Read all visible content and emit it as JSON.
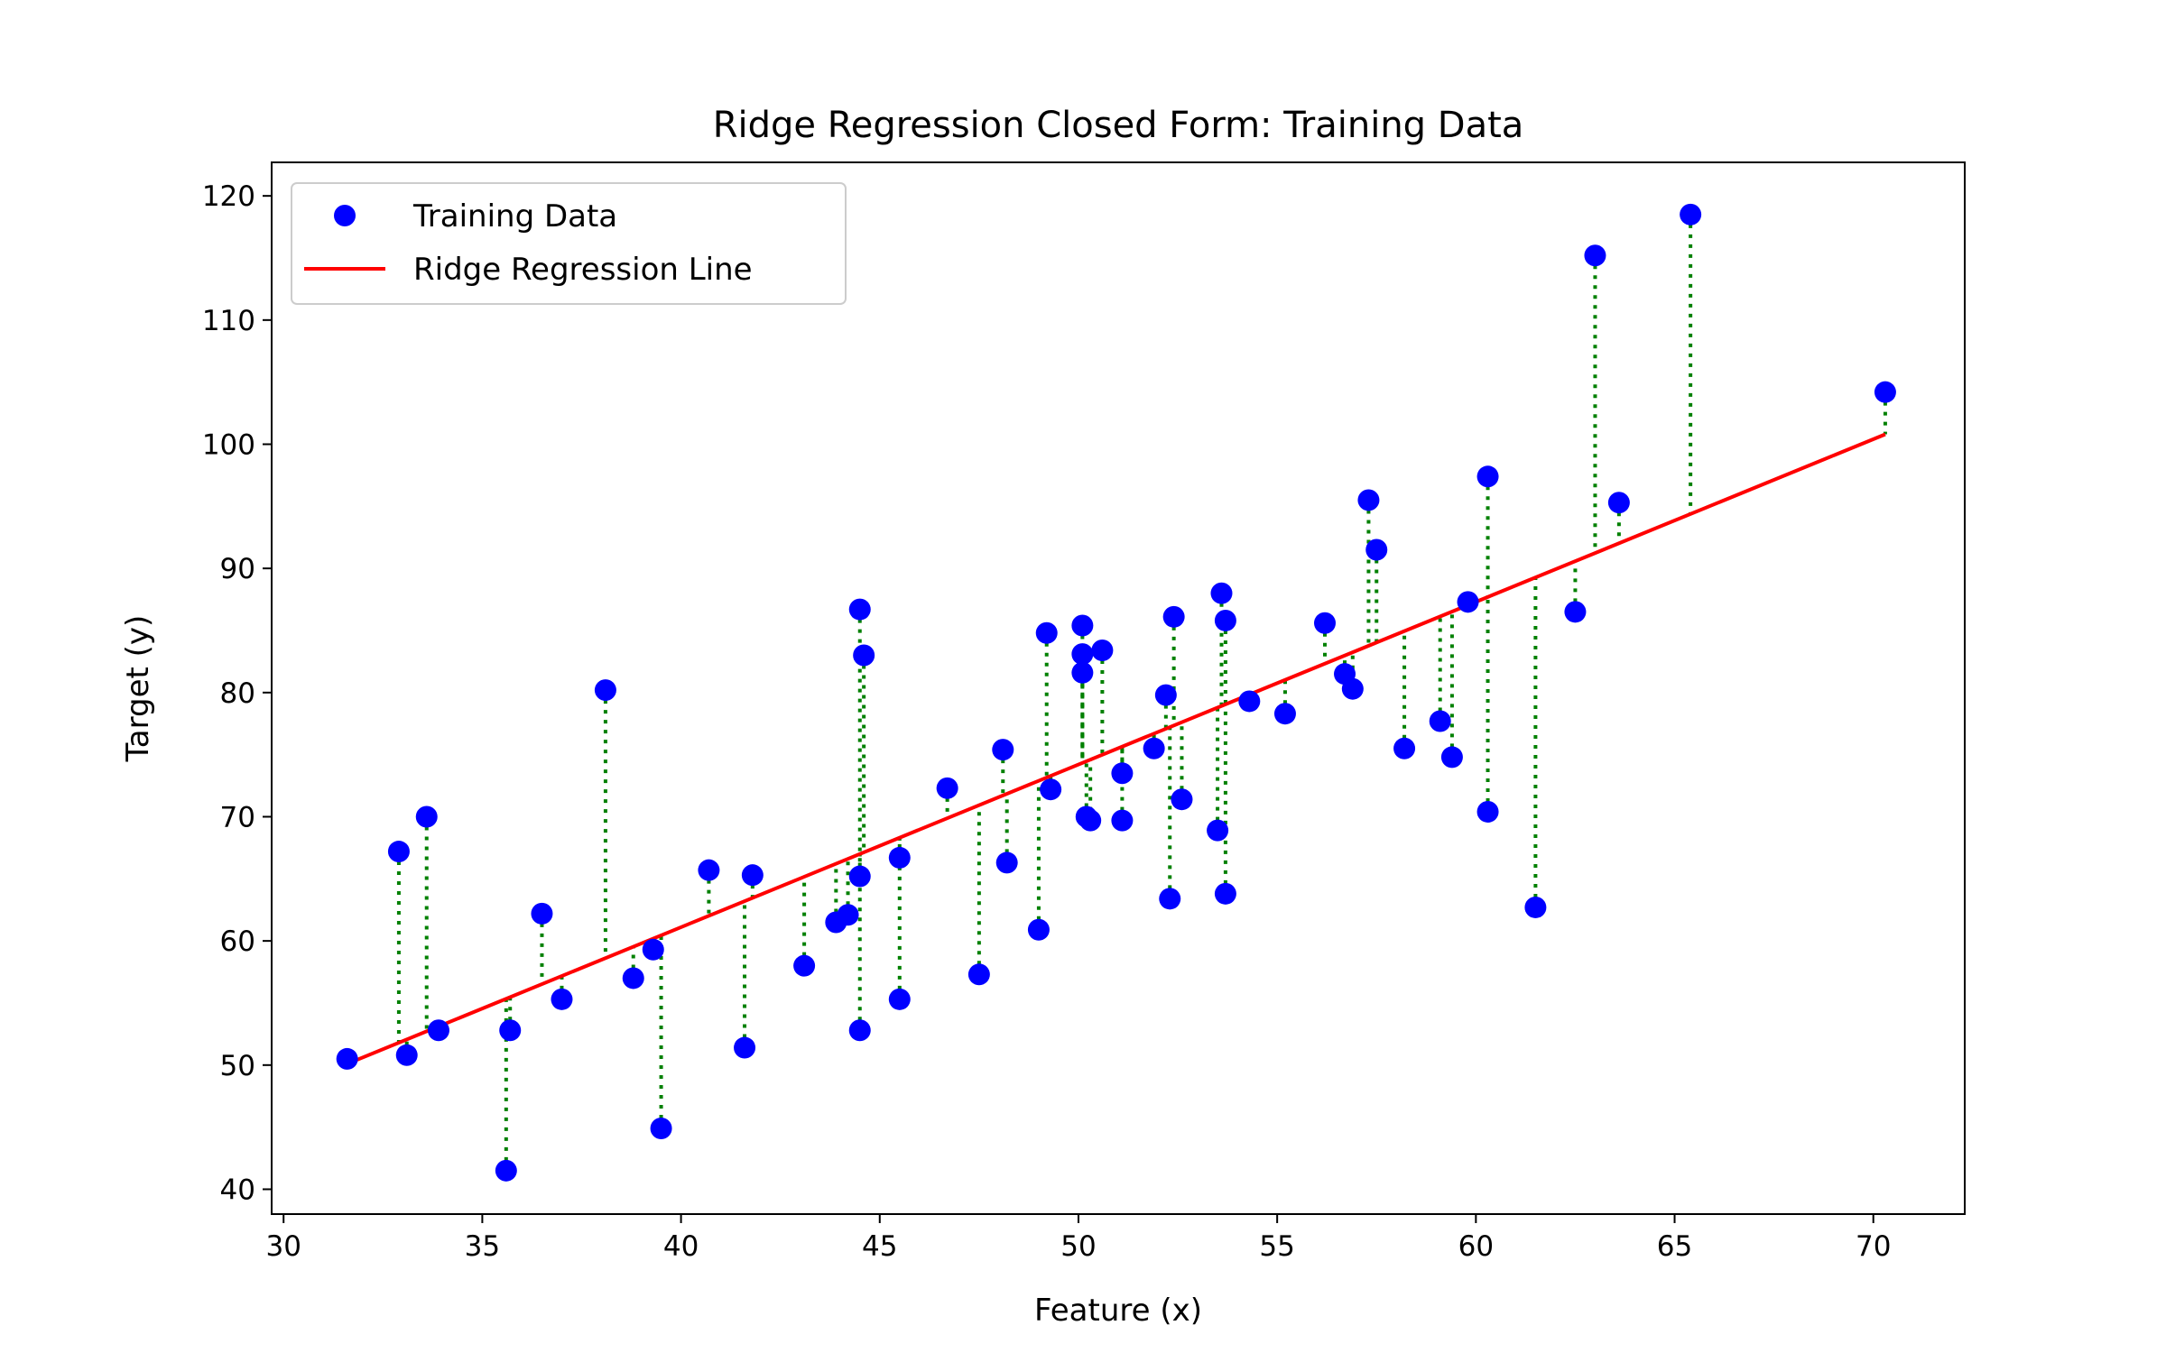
{
  "chart_data": {
    "type": "scatter",
    "title": "Ridge Regression Closed Form: Training Data",
    "xlabel": "Feature (x)",
    "ylabel": "Target (y)",
    "xlim": [
      29.7,
      72.3
    ],
    "ylim": [
      38.0,
      122.7
    ],
    "xticks": [
      30,
      35,
      40,
      45,
      50,
      55,
      60,
      65,
      70
    ],
    "yticks": [
      40,
      50,
      60,
      70,
      80,
      90,
      100,
      110,
      120
    ],
    "grid": false,
    "legend_position": "top-left",
    "colors": {
      "points": "#0000ff",
      "line": "#ff0000",
      "residuals": "#008000"
    },
    "series": [
      {
        "name": "Training Data",
        "kind": "scatter",
        "points": [
          [
            31.6,
            50.5
          ],
          [
            32.9,
            67.2
          ],
          [
            33.1,
            50.8
          ],
          [
            33.6,
            70.0
          ],
          [
            33.9,
            52.8
          ],
          [
            35.6,
            41.5
          ],
          [
            35.7,
            52.8
          ],
          [
            36.5,
            62.2
          ],
          [
            37.0,
            55.3
          ],
          [
            38.1,
            80.2
          ],
          [
            38.8,
            57.0
          ],
          [
            39.3,
            59.3
          ],
          [
            39.5,
            44.9
          ],
          [
            40.7,
            65.7
          ],
          [
            41.6,
            51.4
          ],
          [
            41.8,
            65.3
          ],
          [
            43.1,
            58.0
          ],
          [
            43.9,
            61.5
          ],
          [
            44.2,
            62.1
          ],
          [
            44.5,
            86.7
          ],
          [
            44.6,
            83.0
          ],
          [
            44.5,
            52.8
          ],
          [
            44.5,
            65.2
          ],
          [
            45.5,
            55.3
          ],
          [
            45.5,
            66.7
          ],
          [
            46.7,
            72.3
          ],
          [
            47.5,
            57.3
          ],
          [
            48.1,
            75.4
          ],
          [
            48.2,
            66.3
          ],
          [
            49.0,
            60.9
          ],
          [
            49.2,
            84.8
          ],
          [
            49.3,
            72.2
          ],
          [
            50.1,
            85.4
          ],
          [
            50.1,
            83.1
          ],
          [
            50.1,
            81.6
          ],
          [
            50.2,
            70.0
          ],
          [
            50.3,
            69.7
          ],
          [
            50.6,
            83.4
          ],
          [
            51.1,
            73.5
          ],
          [
            51.1,
            69.7
          ],
          [
            51.9,
            75.5
          ],
          [
            52.2,
            79.8
          ],
          [
            52.3,
            63.4
          ],
          [
            52.4,
            86.1
          ],
          [
            52.6,
            71.4
          ],
          [
            53.5,
            68.9
          ],
          [
            53.6,
            88.0
          ],
          [
            53.7,
            85.8
          ],
          [
            53.7,
            63.8
          ],
          [
            54.3,
            79.3
          ],
          [
            55.2,
            78.3
          ],
          [
            56.2,
            85.6
          ],
          [
            56.7,
            81.5
          ],
          [
            56.9,
            80.3
          ],
          [
            57.3,
            95.5
          ],
          [
            57.5,
            91.5
          ],
          [
            58.2,
            75.5
          ],
          [
            59.1,
            77.7
          ],
          [
            59.4,
            74.8
          ],
          [
            59.8,
            87.3
          ],
          [
            60.3,
            97.4
          ],
          [
            60.3,
            70.4
          ],
          [
            61.5,
            62.7
          ],
          [
            62.5,
            86.5
          ],
          [
            63.0,
            115.2
          ],
          [
            63.6,
            95.3
          ],
          [
            65.4,
            118.5
          ],
          [
            70.3,
            104.2
          ]
        ]
      },
      {
        "name": "Ridge Regression Line",
        "kind": "line",
        "points": [
          [
            31.6,
            50.1
          ],
          [
            70.3,
            100.8
          ]
        ]
      }
    ]
  }
}
